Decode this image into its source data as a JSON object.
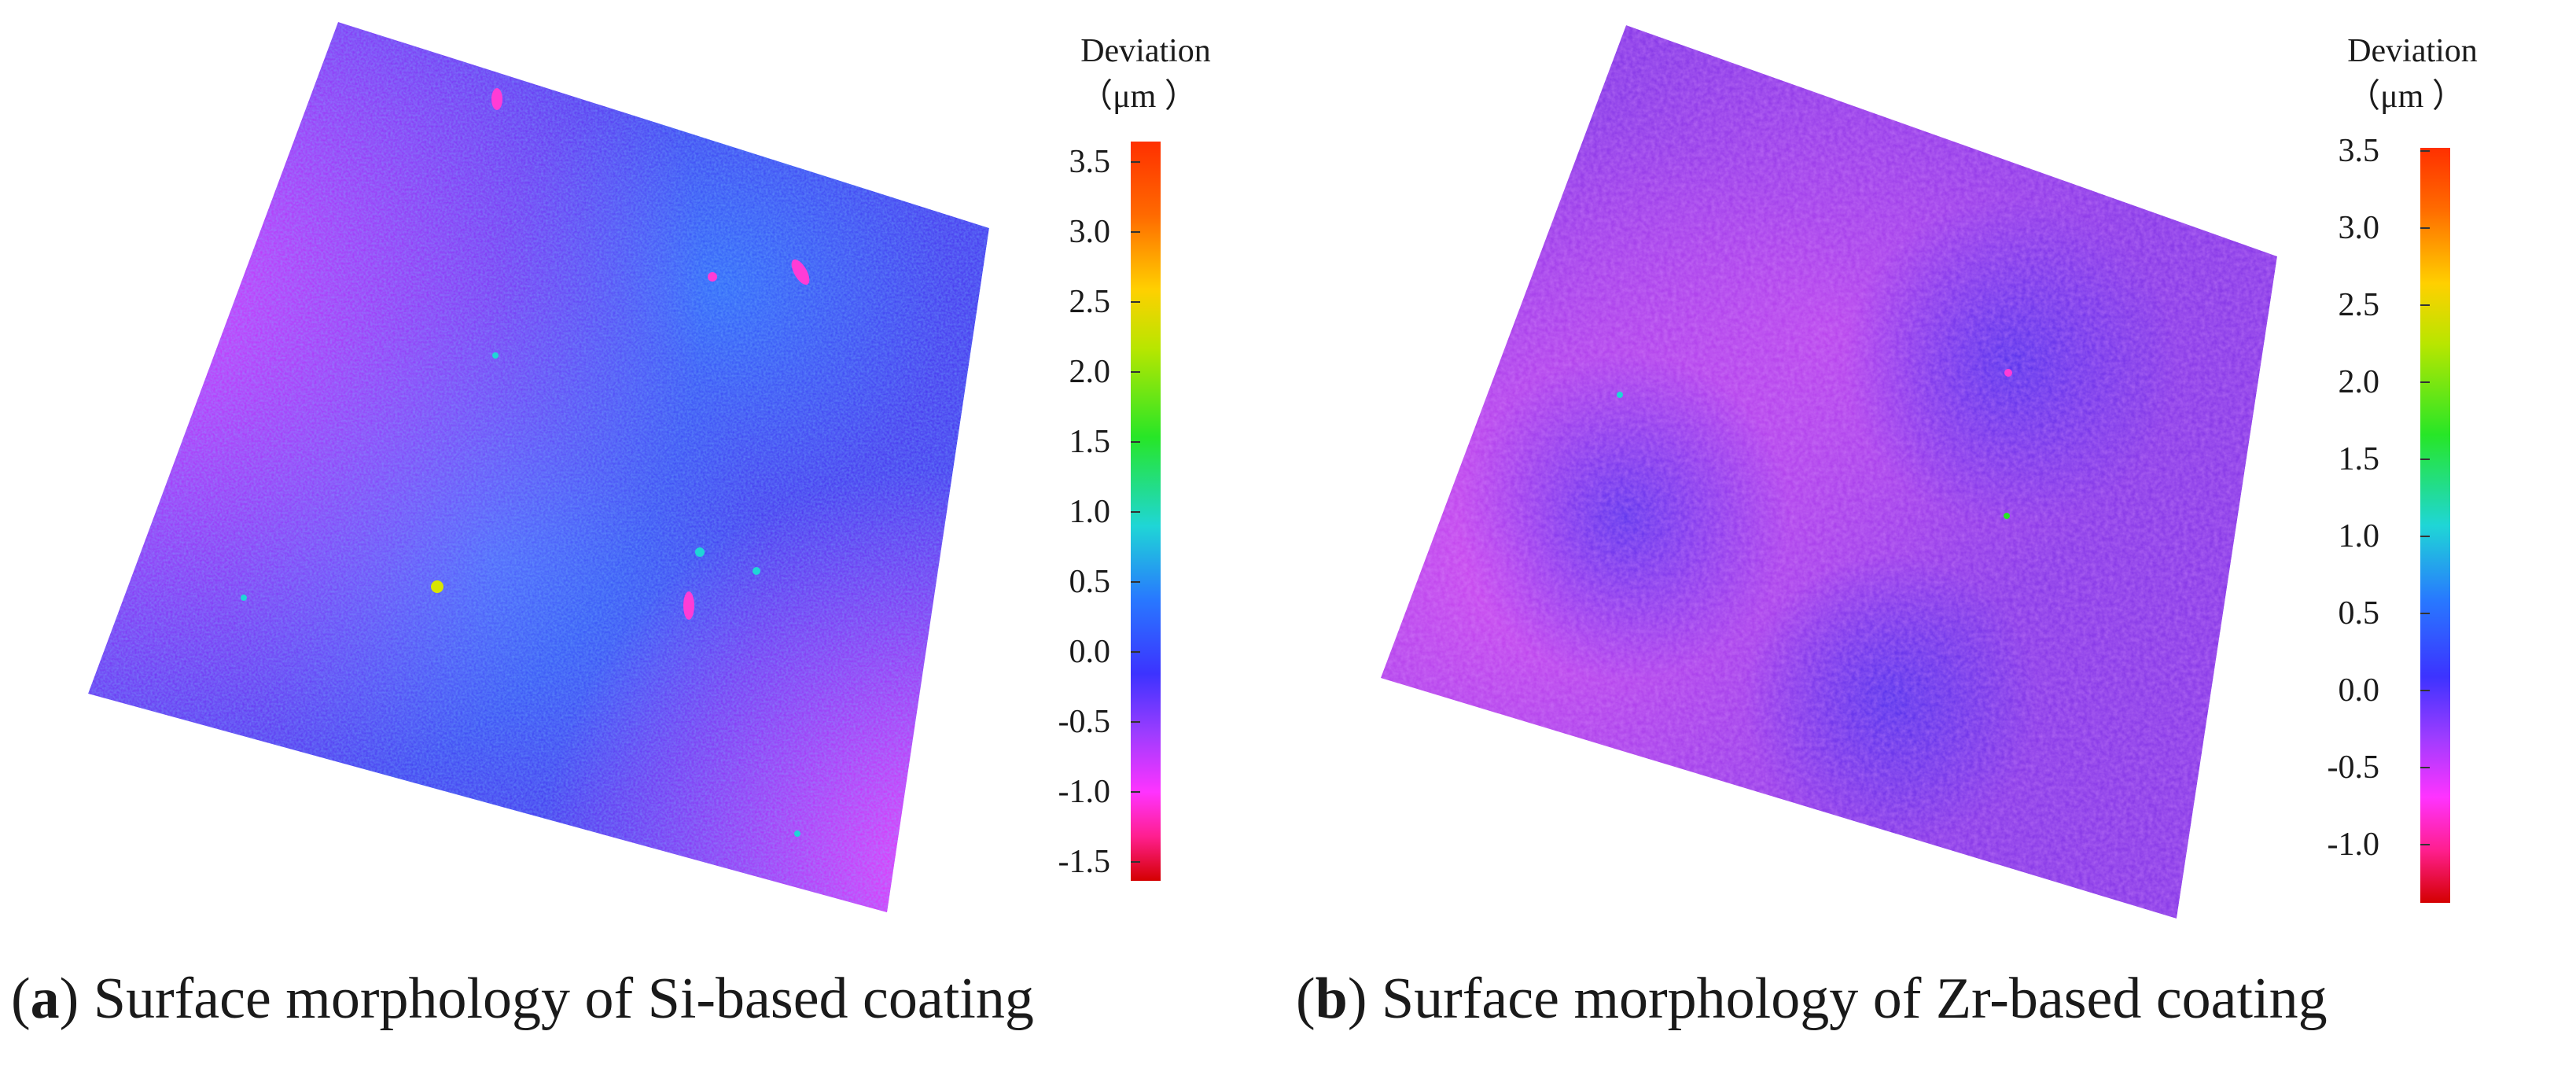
{
  "colors": {
    "scale": [
      "#d40000",
      "#ff1f8f",
      "#ff33ff",
      "#9c3cff",
      "#3c33ff",
      "#2878ff",
      "#1fd6d6",
      "#27e627",
      "#d0e000",
      "#ffd000",
      "#ff6a00",
      "#ff3000"
    ],
    "surface_a_base": "#4a3df0",
    "surface_a_edge": "#d43cff",
    "surface_b_base": "#8a3ce8",
    "surface_b_edge": "#c04df0"
  },
  "panel_a": {
    "legend_title": "Deviation",
    "legend_unit": "（μm ）",
    "ticks": [
      "3.5",
      "3.0",
      "2.5",
      "2.0",
      "1.5",
      "1.0",
      "0.5",
      "0.0",
      "-0.5",
      "-1.0",
      "-1.5"
    ],
    "caption_label": "a",
    "caption_text": "Surface morphology of Si-based coating"
  },
  "panel_b": {
    "legend_title": "Deviation",
    "legend_unit": "（μm ）",
    "ticks": [
      "3.5",
      "3.0",
      "2.5",
      "2.0",
      "1.5",
      "1.0",
      "0.5",
      "0.0",
      "-0.5",
      "-1.0"
    ],
    "caption_label": "b",
    "caption_text": "Surface morphology of Zr-based coating"
  }
}
